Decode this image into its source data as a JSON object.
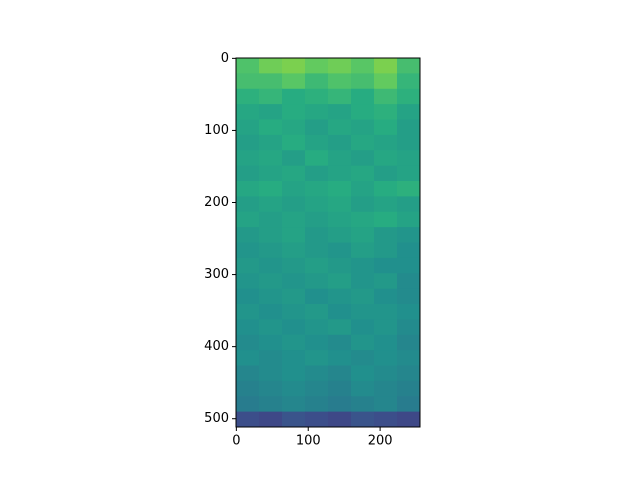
{
  "chart_data": {
    "type": "image",
    "colormap": "viridis",
    "xlim": [
      -0.5,
      255.5
    ],
    "ylim": [
      511.5,
      -0.5
    ],
    "xticks": [
      0,
      100,
      200
    ],
    "yticks": [
      0,
      100,
      200,
      300,
      400,
      500
    ],
    "z": [
      [
        0.72,
        0.78,
        0.8,
        0.76,
        0.78,
        0.74,
        0.8,
        0.7
      ],
      [
        0.7,
        0.7,
        0.74,
        0.68,
        0.72,
        0.7,
        0.76,
        0.66
      ],
      [
        0.64,
        0.66,
        0.62,
        0.64,
        0.66,
        0.62,
        0.68,
        0.64
      ],
      [
        0.6,
        0.58,
        0.62,
        0.6,
        0.58,
        0.62,
        0.64,
        0.58
      ],
      [
        0.58,
        0.62,
        0.6,
        0.56,
        0.6,
        0.58,
        0.62,
        0.56
      ],
      [
        0.56,
        0.58,
        0.62,
        0.58,
        0.56,
        0.6,
        0.58,
        0.56
      ],
      [
        0.58,
        0.6,
        0.56,
        0.62,
        0.58,
        0.56,
        0.6,
        0.58
      ],
      [
        0.56,
        0.58,
        0.6,
        0.56,
        0.58,
        0.6,
        0.56,
        0.58
      ],
      [
        0.6,
        0.62,
        0.58,
        0.6,
        0.62,
        0.58,
        0.62,
        0.64
      ],
      [
        0.56,
        0.58,
        0.56,
        0.58,
        0.6,
        0.56,
        0.58,
        0.56
      ],
      [
        0.58,
        0.56,
        0.58,
        0.56,
        0.58,
        0.6,
        0.62,
        0.58
      ],
      [
        0.54,
        0.56,
        0.58,
        0.54,
        0.56,
        0.58,
        0.54,
        0.52
      ],
      [
        0.52,
        0.54,
        0.56,
        0.54,
        0.52,
        0.56,
        0.54,
        0.5
      ],
      [
        0.54,
        0.52,
        0.54,
        0.56,
        0.54,
        0.52,
        0.5,
        0.5
      ],
      [
        0.52,
        0.54,
        0.52,
        0.54,
        0.56,
        0.52,
        0.54,
        0.48
      ],
      [
        0.5,
        0.52,
        0.54,
        0.5,
        0.52,
        0.54,
        0.5,
        0.48
      ],
      [
        0.52,
        0.5,
        0.52,
        0.54,
        0.5,
        0.52,
        0.52,
        0.5
      ],
      [
        0.5,
        0.52,
        0.5,
        0.52,
        0.54,
        0.5,
        0.52,
        0.48
      ],
      [
        0.48,
        0.5,
        0.52,
        0.5,
        0.48,
        0.52,
        0.5,
        0.46
      ],
      [
        0.5,
        0.48,
        0.5,
        0.52,
        0.5,
        0.48,
        0.5,
        0.48
      ],
      [
        0.46,
        0.48,
        0.5,
        0.48,
        0.46,
        0.5,
        0.48,
        0.46
      ],
      [
        0.44,
        0.46,
        0.48,
        0.46,
        0.44,
        0.48,
        0.46,
        0.44
      ],
      [
        0.42,
        0.44,
        0.46,
        0.44,
        0.42,
        0.44,
        0.46,
        0.42
      ],
      [
        0.24,
        0.22,
        0.26,
        0.24,
        0.22,
        0.26,
        0.24,
        0.22
      ]
    ]
  }
}
